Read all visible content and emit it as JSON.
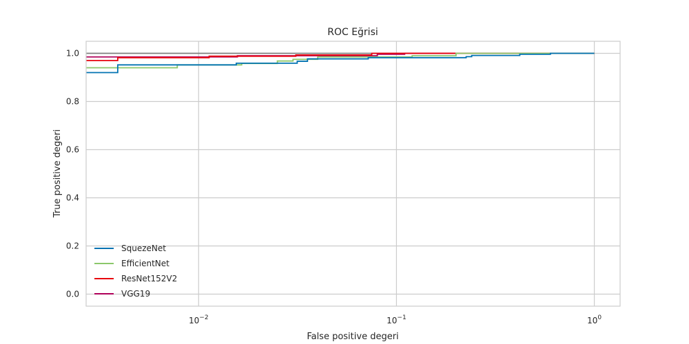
{
  "chart_data": {
    "type": "line",
    "title": "ROC Eğrisi",
    "xlabel": "False positive degeri",
    "ylabel": "True positive degeri",
    "x_scale": "log",
    "xlim": [
      0.0027,
      1.35
    ],
    "ylim": [
      -0.05,
      1.05
    ],
    "x_ticks": [
      {
        "value": 0.01,
        "base": "10",
        "exp": "−2"
      },
      {
        "value": 0.1,
        "base": "10",
        "exp": "−1"
      },
      {
        "value": 1,
        "base": "10",
        "exp": "0"
      }
    ],
    "y_ticks": [
      {
        "value": 0.0,
        "label": "0.0"
      },
      {
        "value": 0.2,
        "label": "0.2"
      },
      {
        "value": 0.4,
        "label": "0.4"
      },
      {
        "value": 0.6,
        "label": "0.6"
      },
      {
        "value": 0.8,
        "label": "0.8"
      },
      {
        "value": 1.0,
        "label": "1.0"
      }
    ],
    "grid": true,
    "legend_position": "lower-left",
    "series": [
      {
        "name": "SquezeNet",
        "color": "#0072b2",
        "x": [
          0.0027,
          0.0039,
          0.0039,
          0.0155,
          0.0155,
          0.0315,
          0.0315,
          0.0355,
          0.0355,
          0.072,
          0.072,
          0.225,
          0.225,
          0.24,
          0.24,
          0.42,
          0.42,
          0.6,
          0.6,
          1.0
        ],
        "y": [
          0.92,
          0.92,
          0.952,
          0.952,
          0.959,
          0.959,
          0.967,
          0.967,
          0.977,
          0.977,
          0.982,
          0.982,
          0.986,
          0.986,
          0.991,
          0.991,
          0.996,
          0.996,
          1.0,
          1.0
        ]
      },
      {
        "name": "EfficientNet",
        "color": "#8bc76a",
        "x": [
          0.0027,
          0.0078,
          0.0078,
          0.0165,
          0.0165,
          0.025,
          0.025,
          0.03,
          0.03,
          0.04,
          0.04,
          0.12,
          0.12,
          0.2,
          0.2,
          1.0
        ],
        "y": [
          0.94,
          0.94,
          0.952,
          0.952,
          0.958,
          0.958,
          0.968,
          0.968,
          0.975,
          0.975,
          0.985,
          0.985,
          0.99,
          0.99,
          1.0,
          1.0
        ]
      },
      {
        "name": "ResNet152V2",
        "color": "#e8000b",
        "x": [
          0.0027,
          0.0039,
          0.0039,
          0.0113,
          0.0113,
          0.031,
          0.031,
          0.075,
          0.075,
          1.0
        ],
        "y": [
          0.97,
          0.97,
          0.982,
          0.982,
          0.988,
          0.988,
          0.993,
          0.993,
          1.0,
          1.0
        ]
      },
      {
        "name": "VGG19",
        "color": "#b0005a",
        "x": [
          0.0027,
          0.0157,
          0.0157,
          0.08,
          0.08,
          0.11,
          0.11,
          1.0
        ],
        "y": [
          0.985,
          0.985,
          0.99,
          0.99,
          0.996,
          0.996,
          1.0,
          1.0
        ]
      },
      {
        "name": "",
        "color": "#7f7f7f",
        "x": [
          0.0027,
          1.0
        ],
        "y": [
          1.0,
          1.0
        ]
      }
    ]
  }
}
